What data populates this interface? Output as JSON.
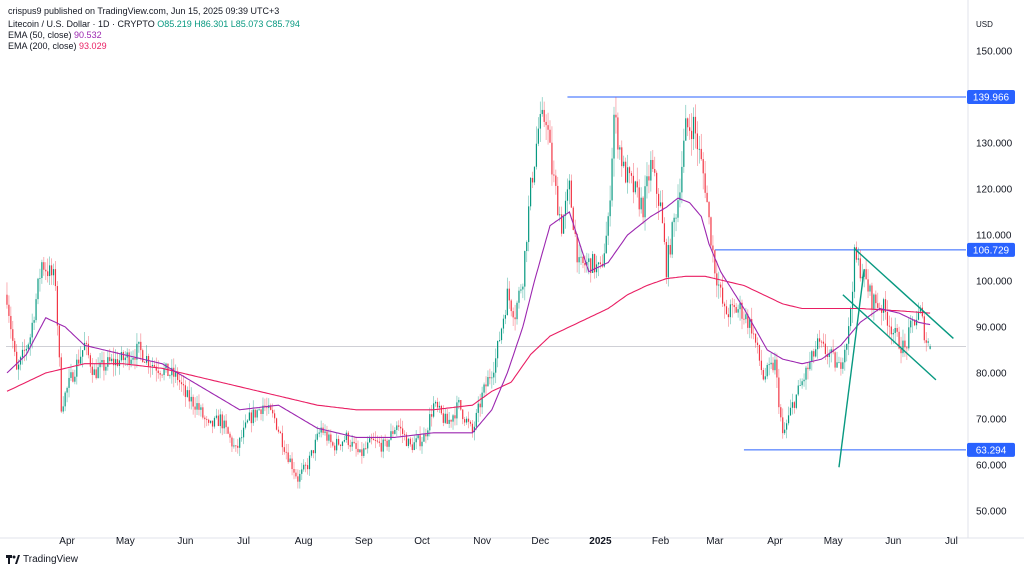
{
  "header": {
    "attribution": "crispus9 published on TradingView.com, Jun 15, 2025 09:39 UTC+3",
    "symbol": "Litecoin / U.S. Dollar · 1D · CRYPTO",
    "ohlc": "O85.219 H86.301 L85.073 C85.794",
    "ema50_label": "EMA (50, close)",
    "ema50_value": "90.532",
    "ema200_label": "EMA (200, close)",
    "ema200_value": "93.029",
    "currency": "USD"
  },
  "footer": {
    "brand": "TradingView"
  },
  "colors": {
    "up": "#089981",
    "down": "#f23645",
    "ema50": "#9c27b0",
    "ema200": "#e91e63",
    "levels": "#2962ff",
    "trend": "#089981"
  },
  "chart_data": {
    "type": "candlestick",
    "ylim": [
      45,
      158
    ],
    "y_ticks": [
      50,
      60,
      70,
      80,
      90,
      100,
      110,
      120,
      130,
      140,
      150
    ],
    "y_tick_labels": [
      "50.000",
      "60.000",
      "70.000",
      "80.000",
      "90.000",
      "100.000",
      "110.000",
      "120.000",
      "130.000",
      "140.000",
      "150.000"
    ],
    "x_ticks": [
      "Apr",
      "May",
      "Jun",
      "Jul",
      "Aug",
      "Sep",
      "Oct",
      "Nov",
      "Dec",
      "2025",
      "Feb",
      "Mar",
      "Apr",
      "May",
      "Jun",
      "Jul"
    ],
    "x_tick_bold": [
      false,
      false,
      false,
      false,
      false,
      false,
      false,
      false,
      false,
      true,
      false,
      false,
      false,
      false,
      false,
      false
    ],
    "x_tick_index": [
      31,
      61,
      92,
      122,
      153,
      184,
      214,
      245,
      275,
      306,
      337,
      365,
      396,
      426,
      457,
      487
    ],
    "last_close": 85.794,
    "price_levels": [
      {
        "label": "139.966",
        "value": 139.966,
        "from_index": 289
      },
      {
        "label": "106.729",
        "value": 106.729,
        "from_index": 365
      },
      {
        "label": "63.294",
        "value": 63.294,
        "from_index": 380
      }
    ],
    "trendlines": [
      {
        "from": [
          429,
          59.5
        ],
        "to": [
          442,
          102.5
        ]
      },
      {
        "from": [
          437,
          107
        ],
        "to": [
          488,
          87.5
        ]
      },
      {
        "from": [
          431,
          97
        ],
        "to": [
          479,
          78.5
        ]
      }
    ],
    "price_anchors": [
      [
        0,
        97
      ],
      [
        5,
        80
      ],
      [
        12,
        88
      ],
      [
        18,
        104
      ],
      [
        25,
        100
      ],
      [
        28,
        73
      ],
      [
        35,
        81
      ],
      [
        40,
        86
      ],
      [
        45,
        80
      ],
      [
        52,
        82
      ],
      [
        60,
        83
      ],
      [
        68,
        85
      ],
      [
        75,
        82
      ],
      [
        83,
        80
      ],
      [
        88,
        79
      ],
      [
        92,
        75
      ],
      [
        98,
        73
      ],
      [
        104,
        68
      ],
      [
        110,
        70
      ],
      [
        118,
        63
      ],
      [
        125,
        70
      ],
      [
        132,
        73
      ],
      [
        138,
        70
      ],
      [
        144,
        63
      ],
      [
        150,
        57
      ],
      [
        155,
        60
      ],
      [
        162,
        68
      ],
      [
        168,
        64
      ],
      [
        175,
        66
      ],
      [
        182,
        62
      ],
      [
        188,
        65
      ],
      [
        195,
        64
      ],
      [
        201,
        69
      ],
      [
        208,
        64
      ],
      [
        215,
        66
      ],
      [
        220,
        73
      ],
      [
        227,
        69
      ],
      [
        233,
        73
      ],
      [
        240,
        67
      ],
      [
        245,
        75
      ],
      [
        252,
        83
      ],
      [
        258,
        97
      ],
      [
        262,
        93
      ],
      [
        266,
        101
      ],
      [
        270,
        120
      ],
      [
        274,
        133
      ],
      [
        278,
        136
      ],
      [
        281,
        124
      ],
      [
        286,
        112
      ],
      [
        290,
        120
      ],
      [
        295,
        103
      ],
      [
        301,
        104
      ],
      [
        306,
        102
      ],
      [
        310,
        112
      ],
      [
        313,
        136
      ],
      [
        318,
        124
      ],
      [
        323,
        120
      ],
      [
        328,
        116
      ],
      [
        332,
        125
      ],
      [
        337,
        116
      ],
      [
        340,
        103
      ],
      [
        346,
        118
      ],
      [
        350,
        133
      ],
      [
        354,
        134
      ],
      [
        360,
        121
      ],
      [
        362,
        113
      ],
      [
        365,
        103
      ],
      [
        370,
        93
      ],
      [
        378,
        94
      ],
      [
        384,
        90
      ],
      [
        390,
        79
      ],
      [
        396,
        82
      ],
      [
        400,
        66
      ],
      [
        405,
        73
      ],
      [
        410,
        78
      ],
      [
        418,
        86
      ],
      [
        424,
        84
      ],
      [
        429,
        81
      ],
      [
        434,
        89
      ],
      [
        437,
        105
      ],
      [
        441,
        102
      ],
      [
        446,
        96
      ],
      [
        452,
        94
      ],
      [
        458,
        88
      ],
      [
        463,
        85
      ],
      [
        467,
        91
      ],
      [
        471,
        93
      ],
      [
        474,
        87
      ],
      [
        476,
        85.8
      ]
    ],
    "ema50_anchors": [
      [
        0,
        80
      ],
      [
        10,
        84
      ],
      [
        20,
        92
      ],
      [
        30,
        90
      ],
      [
        40,
        86
      ],
      [
        60,
        84
      ],
      [
        80,
        82
      ],
      [
        100,
        77
      ],
      [
        120,
        72
      ],
      [
        140,
        73
      ],
      [
        160,
        68
      ],
      [
        180,
        66
      ],
      [
        200,
        66
      ],
      [
        220,
        67
      ],
      [
        240,
        67
      ],
      [
        250,
        72
      ],
      [
        258,
        80
      ],
      [
        266,
        90
      ],
      [
        272,
        100
      ],
      [
        280,
        112
      ],
      [
        290,
        115
      ],
      [
        300,
        102
      ],
      [
        310,
        104
      ],
      [
        320,
        110
      ],
      [
        332,
        114
      ],
      [
        340,
        116
      ],
      [
        346,
        118
      ],
      [
        352,
        117
      ],
      [
        358,
        114
      ],
      [
        362,
        108
      ],
      [
        368,
        102
      ],
      [
        380,
        94
      ],
      [
        392,
        85
      ],
      [
        400,
        83
      ],
      [
        410,
        82
      ],
      [
        420,
        83
      ],
      [
        430,
        86
      ],
      [
        440,
        91
      ],
      [
        450,
        94
      ],
      [
        460,
        93
      ],
      [
        470,
        91
      ],
      [
        476,
        90.5
      ]
    ],
    "ema200_anchors": [
      [
        0,
        76
      ],
      [
        20,
        80
      ],
      [
        40,
        82
      ],
      [
        60,
        82
      ],
      [
        80,
        81
      ],
      [
        100,
        79
      ],
      [
        120,
        77
      ],
      [
        140,
        75
      ],
      [
        160,
        73
      ],
      [
        180,
        72
      ],
      [
        200,
        72
      ],
      [
        220,
        72
      ],
      [
        240,
        73
      ],
      [
        250,
        76
      ],
      [
        260,
        78
      ],
      [
        270,
        84
      ],
      [
        280,
        88
      ],
      [
        290,
        90
      ],
      [
        300,
        92
      ],
      [
        310,
        94
      ],
      [
        320,
        97
      ],
      [
        330,
        99
      ],
      [
        340,
        100.5
      ],
      [
        350,
        101
      ],
      [
        360,
        101
      ],
      [
        370,
        100
      ],
      [
        380,
        99
      ],
      [
        390,
        97
      ],
      [
        400,
        95
      ],
      [
        410,
        94
      ],
      [
        420,
        94
      ],
      [
        440,
        94
      ],
      [
        460,
        93.5
      ],
      [
        476,
        93
      ]
    ]
  }
}
